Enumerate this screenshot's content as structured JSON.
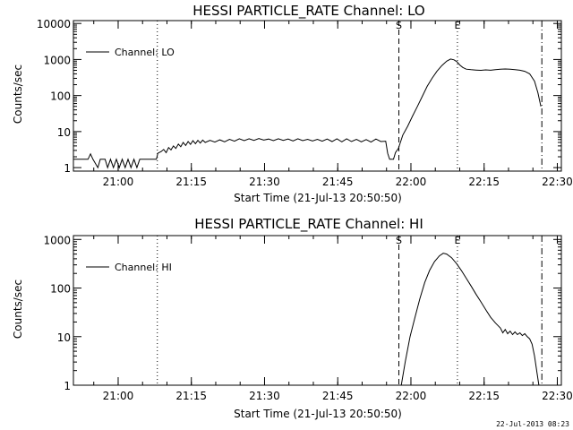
{
  "footer": {
    "date_stamp": "22-Jul-2013 08:23"
  },
  "chart_data": [
    {
      "type": "line",
      "title": "HESSI PARTICLE_RATE Channel: LO",
      "xlabel": "Start Time (21-Jul-13 20:50:50)",
      "ylabel": "Counts/sec",
      "yscale": "log",
      "xlim_minutes": [
        0,
        100
      ],
      "ylim": [
        0.8,
        12000
      ],
      "x_tick_labels": [
        "21:00",
        "21:15",
        "21:30",
        "21:45",
        "22:00",
        "22:15",
        "22:30"
      ],
      "x_tick_minutes": [
        9.17,
        24.17,
        39.17,
        54.17,
        69.17,
        84.17,
        99.17
      ],
      "y_tick_labels": [
        "1",
        "10",
        "100",
        "1000",
        "10000"
      ],
      "y_tick_values": [
        1,
        10,
        100,
        1000,
        10000
      ],
      "legend": {
        "position": "top-left",
        "label": "Channel: LO"
      },
      "markers": [
        {
          "minute": 17.2,
          "style": "dotted",
          "label": ""
        },
        {
          "minute": 66.7,
          "style": "dashed",
          "label": "S"
        },
        {
          "minute": 78.7,
          "style": "dotted",
          "label": "E"
        },
        {
          "minute": 96.0,
          "style": "dashdot",
          "label": ""
        }
      ],
      "series": [
        {
          "name": "Channel: LO",
          "points": [
            [
              0,
              1.7
            ],
            [
              3,
              1.7
            ],
            [
              3.5,
              2.4
            ],
            [
              4,
              1.7
            ],
            [
              5,
              1
            ],
            [
              5.5,
              1.7
            ],
            [
              6.5,
              1.7
            ],
            [
              7,
              1
            ],
            [
              7.6,
              1.7
            ],
            [
              8.2,
              1
            ],
            [
              8.8,
              1.7
            ],
            [
              9.4,
              1
            ],
            [
              10,
              1.7
            ],
            [
              10.6,
              1
            ],
            [
              11.2,
              1.7
            ],
            [
              11.8,
              1
            ],
            [
              12.4,
              1.7
            ],
            [
              13,
              1
            ],
            [
              13.6,
              1.7
            ],
            [
              17,
              1.7
            ],
            [
              17.3,
              2.5
            ],
            [
              18,
              2.8
            ],
            [
              18.5,
              3.2
            ],
            [
              19,
              2.6
            ],
            [
              19.5,
              3.6
            ],
            [
              20,
              3.1
            ],
            [
              20.5,
              4
            ],
            [
              21,
              3.4
            ],
            [
              21.5,
              4.5
            ],
            [
              22,
              3.8
            ],
            [
              22.5,
              5
            ],
            [
              23,
              4.1
            ],
            [
              23.5,
              5.3
            ],
            [
              24,
              4.4
            ],
            [
              24.5,
              5.6
            ],
            [
              25,
              4.6
            ],
            [
              25.5,
              5.7
            ],
            [
              26,
              4.8
            ],
            [
              26.5,
              5.8
            ],
            [
              27,
              5
            ],
            [
              28,
              5.7
            ],
            [
              29,
              5.1
            ],
            [
              30,
              5.9
            ],
            [
              31,
              5.2
            ],
            [
              32,
              6.1
            ],
            [
              33,
              5.4
            ],
            [
              34,
              6.3
            ],
            [
              35,
              5.6
            ],
            [
              36,
              6.3
            ],
            [
              37,
              5.7
            ],
            [
              38,
              6.4
            ],
            [
              39,
              5.8
            ],
            [
              40,
              6.2
            ],
            [
              41,
              5.6
            ],
            [
              42,
              6.3
            ],
            [
              43,
              5.7
            ],
            [
              44,
              6.2
            ],
            [
              45,
              5.5
            ],
            [
              46,
              6.3
            ],
            [
              47,
              5.6
            ],
            [
              48,
              6.1
            ],
            [
              49,
              5.5
            ],
            [
              50,
              6.1
            ],
            [
              51,
              5.4
            ],
            [
              52,
              6.2
            ],
            [
              53,
              5.3
            ],
            [
              54,
              6.3
            ],
            [
              55,
              5.2
            ],
            [
              56,
              6.3
            ],
            [
              57,
              5.3
            ],
            [
              58,
              6.1
            ],
            [
              59,
              5.2
            ],
            [
              60,
              6
            ],
            [
              61,
              5.1
            ],
            [
              62,
              6.2
            ],
            [
              63,
              5.3
            ],
            [
              64,
              5.4
            ],
            [
              64.4,
              2.5
            ],
            [
              64.8,
              1.7
            ],
            [
              65.6,
              1.7
            ],
            [
              66,
              2.6
            ],
            [
              66.6,
              3.4
            ],
            [
              67,
              5
            ],
            [
              67.5,
              8
            ],
            [
              68.5,
              14
            ],
            [
              69.5,
              27
            ],
            [
              70.5,
              50
            ],
            [
              71.5,
              95
            ],
            [
              72.5,
              180
            ],
            [
              73.5,
              300
            ],
            [
              74.5,
              470
            ],
            [
              75.5,
              680
            ],
            [
              76.5,
              900
            ],
            [
              77.3,
              1030
            ],
            [
              78,
              980
            ],
            [
              78.6,
              860
            ],
            [
              79.2,
              700
            ],
            [
              79.8,
              600
            ],
            [
              80.5,
              540
            ],
            [
              81.5,
              520
            ],
            [
              82.5,
              510
            ],
            [
              83.5,
              500
            ],
            [
              84.5,
              515
            ],
            [
              85.5,
              505
            ],
            [
              86.5,
              525
            ],
            [
              87.5,
              535
            ],
            [
              88.5,
              545
            ],
            [
              89.5,
              540
            ],
            [
              90.5,
              520
            ],
            [
              91.5,
              505
            ],
            [
              92.5,
              470
            ],
            [
              93.5,
              400
            ],
            [
              94.5,
              250
            ],
            [
              95.2,
              120
            ],
            [
              95.8,
              50
            ]
          ]
        }
      ]
    },
    {
      "type": "line",
      "title": "HESSI PARTICLE_RATE Channel: HI",
      "xlabel": "Start Time (21-Jul-13 20:50:50)",
      "ylabel": "Counts/sec",
      "yscale": "log",
      "xlim_minutes": [
        0,
        100
      ],
      "ylim": [
        1,
        1200
      ],
      "x_tick_labels": [
        "21:00",
        "21:15",
        "21:30",
        "21:45",
        "22:00",
        "22:15",
        "22:30"
      ],
      "x_tick_minutes": [
        9.17,
        24.17,
        39.17,
        54.17,
        69.17,
        84.17,
        99.17
      ],
      "y_tick_labels": [
        "1",
        "10",
        "100",
        "1000"
      ],
      "y_tick_values": [
        1,
        10,
        100,
        1000
      ],
      "legend": {
        "position": "top-left",
        "label": "Channel: HI"
      },
      "markers": [
        {
          "minute": 17.2,
          "style": "dotted",
          "label": ""
        },
        {
          "minute": 66.7,
          "style": "dashed",
          "label": "S"
        },
        {
          "minute": 78.7,
          "style": "dotted",
          "label": "E"
        },
        {
          "minute": 96.0,
          "style": "dashdot",
          "label": ""
        }
      ],
      "series": [
        {
          "name": "Channel: HI",
          "points": [
            [
              67.2,
              1
            ],
            [
              68,
              3
            ],
            [
              69,
              10
            ],
            [
              70,
              25
            ],
            [
              71,
              60
            ],
            [
              72,
              130
            ],
            [
              73,
              230
            ],
            [
              74,
              350
            ],
            [
              75,
              460
            ],
            [
              75.8,
              520
            ],
            [
              76.5,
              500
            ],
            [
              77.5,
              420
            ],
            [
              78.5,
              320
            ],
            [
              79.5,
              230
            ],
            [
              80.5,
              160
            ],
            [
              81.5,
              110
            ],
            [
              82.5,
              75
            ],
            [
              83.5,
              52
            ],
            [
              84.5,
              36
            ],
            [
              85.5,
              25
            ],
            [
              86.5,
              19
            ],
            [
              87.5,
              15
            ],
            [
              88,
              12
            ],
            [
              88.5,
              14
            ],
            [
              89,
              11.5
            ],
            [
              89.5,
              13
            ],
            [
              90,
              11
            ],
            [
              90.5,
              12.5
            ],
            [
              91,
              11
            ],
            [
              91.5,
              12
            ],
            [
              92,
              10.5
            ],
            [
              92.5,
              11.5
            ],
            [
              93,
              10
            ],
            [
              93.5,
              9
            ],
            [
              94,
              7
            ],
            [
              94.5,
              4
            ],
            [
              95,
              1.8
            ],
            [
              95.4,
              1
            ]
          ]
        }
      ]
    }
  ]
}
